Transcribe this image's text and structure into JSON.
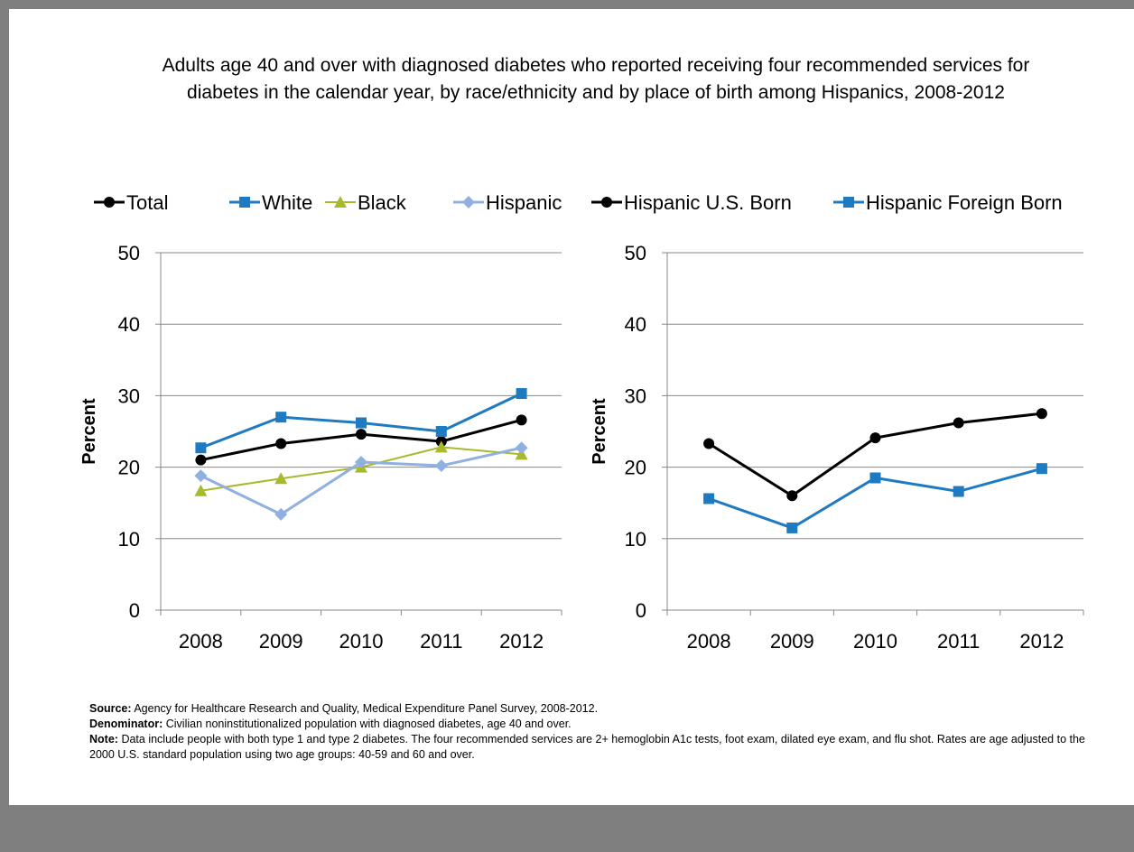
{
  "title": "Adults age 40 and over with diagnosed diabetes who reported receiving four recommended services for diabetes in the calendar year, by race/ethnicity and by place of birth among Hispanics, 2008-2012",
  "notes": {
    "source_label": "Source:",
    "source_text": "Agency for Healthcare Research and Quality, Medical Expenditure Panel Survey, 2008-2012.",
    "denominator_label": "Denominator:",
    "denominator_text": "Civilian noninstitutionalized population with diagnosed diabetes, age 40 and over.",
    "note_label": "Note:",
    "note_text": "Data include people with both type 1 and type 2 diabetes. The four recommended services are 2+ hemoglobin A1c tests, foot exam, dilated eye exam, and flu shot. Rates are age adjusted to the 2000 U.S. standard population using two age groups: 40-59 and 60 and over."
  },
  "chart_data": [
    {
      "type": "line",
      "title": "",
      "xlabel": "",
      "ylabel": "Percent",
      "categories": [
        "2008",
        "2009",
        "2010",
        "2011",
        "2012"
      ],
      "ylim": [
        0,
        50
      ],
      "yticks": [
        0,
        10,
        20,
        30,
        40,
        50
      ],
      "grid": true,
      "legend": "top",
      "series": [
        {
          "name": "Total",
          "values": [
            21.0,
            23.3,
            24.6,
            23.6,
            26.6
          ],
          "color": "#000000",
          "marker": "circle",
          "width": 3
        },
        {
          "name": "White",
          "values": [
            22.7,
            27.0,
            26.2,
            25.0,
            30.3
          ],
          "color": "#1f7bc1",
          "marker": "square",
          "width": 3
        },
        {
          "name": "Black",
          "values": [
            16.7,
            18.4,
            20.0,
            22.8,
            21.8
          ],
          "color": "#a9b92e",
          "marker": "triangle",
          "width": 2
        },
        {
          "name": "Hispanic",
          "values": [
            18.8,
            13.4,
            20.7,
            20.2,
            22.7
          ],
          "color": "#8fb0e0",
          "marker": "diamond",
          "width": 3
        }
      ]
    },
    {
      "type": "line",
      "title": "",
      "xlabel": "",
      "ylabel": "Percent",
      "categories": [
        "2008",
        "2009",
        "2010",
        "2011",
        "2012"
      ],
      "ylim": [
        0,
        50
      ],
      "yticks": [
        0,
        10,
        20,
        30,
        40,
        50
      ],
      "grid": true,
      "legend": "top",
      "series": [
        {
          "name": "Hispanic U.S. Born",
          "values": [
            23.3,
            16.0,
            24.1,
            26.2,
            27.5
          ],
          "color": "#000000",
          "marker": "circle",
          "width": 3
        },
        {
          "name": "Hispanic Foreign Born",
          "values": [
            15.6,
            11.5,
            18.5,
            16.6,
            19.8
          ],
          "color": "#1f7bc1",
          "marker": "square",
          "width": 3
        }
      ]
    }
  ]
}
